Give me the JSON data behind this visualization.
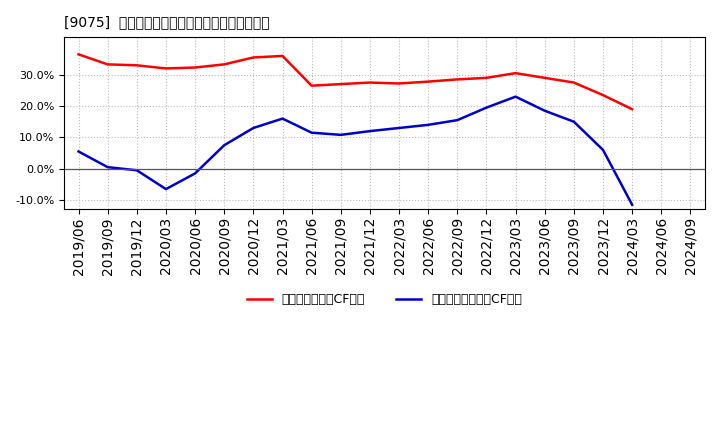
{
  "title": "[9075]  有利子負債キャッシュフロー比率の推移",
  "legend_red": "有利子負債営業CF比率",
  "legend_blue": "有利子負債フリーCF比率",
  "background_color": "#ffffff",
  "plot_bg_color": "#ffffff",
  "grid_color": "#bbbbbb",
  "red_color": "#ff0000",
  "blue_color": "#0000cc",
  "dates": [
    "2019/06",
    "2019/09",
    "2019/12",
    "2020/03",
    "2020/06",
    "2020/09",
    "2020/12",
    "2021/03",
    "2021/06",
    "2021/09",
    "2021/12",
    "2022/03",
    "2022/06",
    "2022/09",
    "2022/12",
    "2023/03",
    "2023/06",
    "2023/09",
    "2023/12",
    "2024/03",
    "2024/06",
    "2024/09"
  ],
  "red_values": [
    0.365,
    0.333,
    0.33,
    0.32,
    0.323,
    0.333,
    0.355,
    0.36,
    0.265,
    0.27,
    0.275,
    0.272,
    0.278,
    0.285,
    0.29,
    0.305,
    0.29,
    0.275,
    0.235,
    0.19,
    null,
    null
  ],
  "blue_values": [
    0.055,
    0.005,
    -0.005,
    -0.065,
    -0.015,
    0.075,
    0.13,
    0.16,
    0.115,
    0.108,
    0.12,
    0.13,
    0.14,
    0.155,
    0.195,
    0.23,
    0.185,
    0.15,
    0.06,
    -0.115,
    null,
    null
  ],
  "ylim": [
    -0.13,
    0.42
  ],
  "yticks": [
    -0.1,
    0.0,
    0.1,
    0.2,
    0.3
  ],
  "line_width": 1.8,
  "title_fontsize": 12,
  "tick_fontsize": 8,
  "legend_fontsize": 9
}
